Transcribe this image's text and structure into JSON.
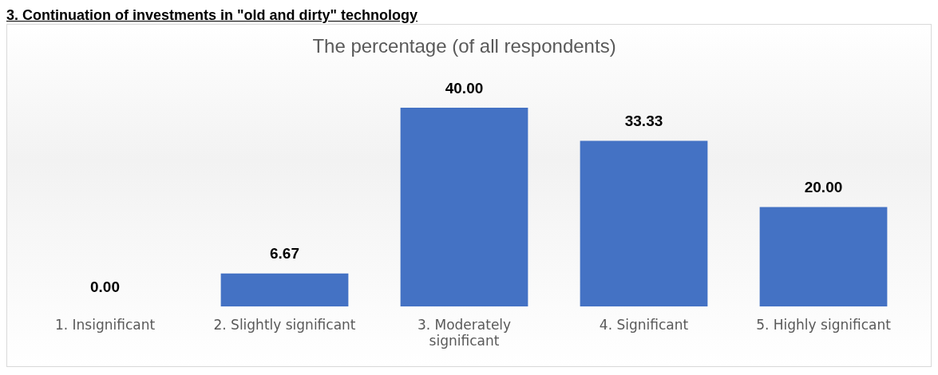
{
  "chart_data": {
    "type": "bar",
    "subtitle": "3. Continuation of investments in \"old and dirty\" technology",
    "title": "The percentage (of all respondents)",
    "categories": [
      "1. Insignificant",
      "2. Slightly significant",
      "3. Moderately significant",
      "4. Significant",
      "5. Highly significant"
    ],
    "values": [
      0,
      6.67,
      40,
      33.33,
      20
    ],
    "value_labels": [
      "0.00",
      "6.67",
      "40.00",
      "33.33",
      "20.00"
    ],
    "color": "#4472c4",
    "grid": false,
    "legend": false
  }
}
